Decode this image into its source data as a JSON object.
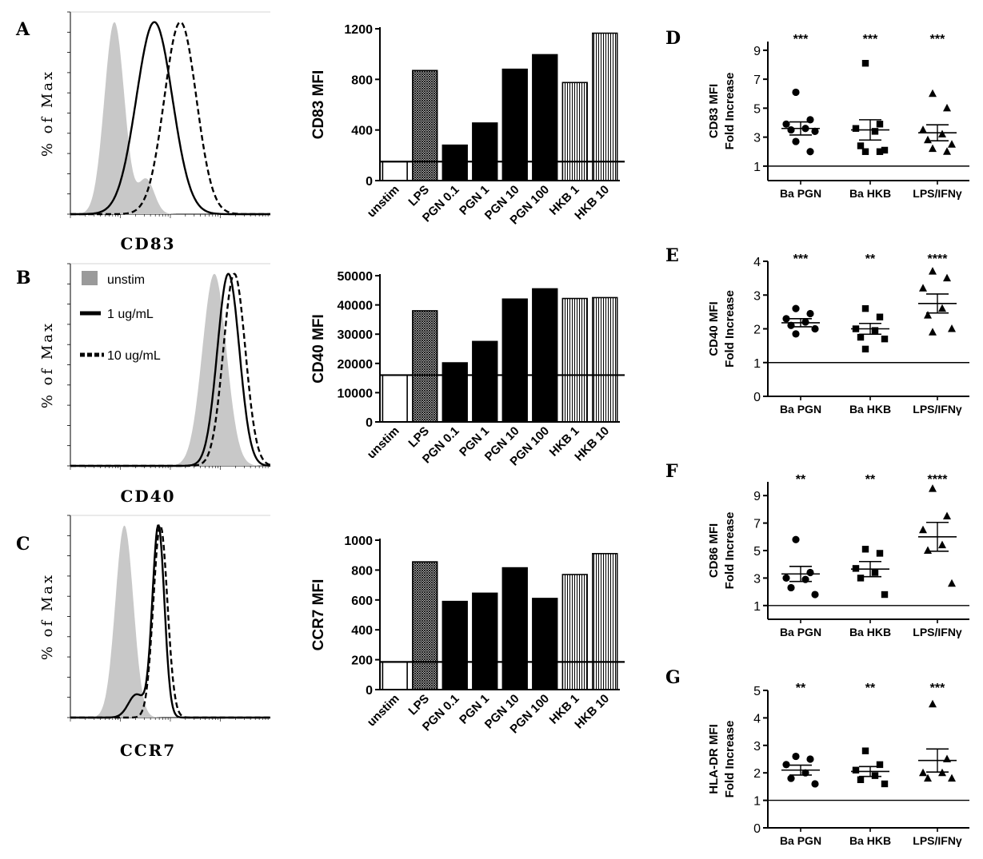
{
  "chart_data": [
    {
      "panel": "A",
      "type": "histogram",
      "xlabel": "CD83",
      "ylabel": "% of Max",
      "series": [
        {
          "name": "unstim",
          "style": "filled-gray",
          "mode": 0.22,
          "width": 0.05,
          "shoulder": [
            0.38,
            0.18
          ]
        },
        {
          "name": "1 ug/mL",
          "style": "solid",
          "mode": 0.42,
          "width": 0.09
        },
        {
          "name": "10 ug/mL",
          "style": "dashed",
          "mode": 0.55,
          "width": 0.08
        }
      ]
    },
    {
      "panel": "B",
      "type": "histogram",
      "xlabel": "CD40",
      "ylabel": "% of Max",
      "legend": [
        "unstim",
        "1 ug/mL",
        "10 ug/mL"
      ],
      "series": [
        {
          "name": "unstim",
          "style": "filled-gray",
          "mode": 0.72,
          "width": 0.06
        },
        {
          "name": "1 ug/mL",
          "style": "solid",
          "mode": 0.79,
          "width": 0.055
        },
        {
          "name": "10 ug/mL",
          "style": "dashed",
          "mode": 0.82,
          "width": 0.055
        }
      ]
    },
    {
      "panel": "C",
      "type": "histogram",
      "xlabel": "CCR7",
      "ylabel": "% of Max",
      "series": [
        {
          "name": "unstim",
          "style": "filled-gray",
          "mode": 0.27,
          "width": 0.045
        },
        {
          "name": "1 ug/mL",
          "style": "solid",
          "mode": 0.44,
          "width": 0.03,
          "shoulder": [
            0.33,
            0.12
          ]
        },
        {
          "name": "10 ug/mL",
          "style": "dashed",
          "mode": 0.45,
          "width": 0.035
        }
      ]
    },
    {
      "panel": "bar-CD83",
      "type": "bar",
      "ylabel": "CD83 MFI",
      "ylim": [
        0,
        1200
      ],
      "yticks": [
        0,
        400,
        800,
        1200
      ],
      "categories": [
        "unstim",
        "LPS",
        "PGN 0.1",
        "PGN 1",
        "PGN 10",
        "PGN 100",
        "HKB 1",
        "HKB 10"
      ],
      "values": [
        150,
        870,
        280,
        455,
        880,
        995,
        775,
        1165
      ],
      "fills": [
        "white",
        "cross",
        "black",
        "black",
        "black",
        "black",
        "vlines",
        "vlines"
      ],
      "reference_line": 150
    },
    {
      "panel": "bar-CD40",
      "type": "bar",
      "ylabel": "CD40 MFI",
      "ylim": [
        0,
        50000
      ],
      "yticks": [
        0,
        10000,
        20000,
        30000,
        40000,
        50000
      ],
      "categories": [
        "unstim",
        "LPS",
        "PGN 0.1",
        "PGN 1",
        "PGN 10",
        "PGN 100",
        "HKB 1",
        "HKB 10"
      ],
      "values": [
        16000,
        38000,
        20200,
        27500,
        42000,
        45500,
        42200,
        42500
      ],
      "fills": [
        "white",
        "cross",
        "black",
        "black",
        "black",
        "black",
        "vlines",
        "vlines"
      ],
      "reference_line": 16000
    },
    {
      "panel": "bar-CCR7",
      "type": "bar",
      "ylabel": "CCR7 MFI",
      "ylim": [
        0,
        1000
      ],
      "yticks": [
        0,
        200,
        400,
        600,
        800,
        1000
      ],
      "categories": [
        "unstim",
        "LPS",
        "PGN 0.1",
        "PGN 1",
        "PGN 10",
        "PGN 100",
        "HKB 1",
        "HKB 10"
      ],
      "values": [
        185,
        855,
        590,
        645,
        815,
        610,
        770,
        910
      ],
      "fills": [
        "white",
        "cross",
        "black",
        "black",
        "black",
        "black",
        "vlines",
        "vlines"
      ],
      "reference_line": 185
    },
    {
      "panel": "D",
      "type": "scatter",
      "ylabel": [
        "CD83 MFI",
        "Fold Increase"
      ],
      "ylim": [
        0,
        9.6
      ],
      "yticks": [
        1,
        3,
        5,
        7,
        9
      ],
      "baseline": 1,
      "categories": [
        "Ba PGN",
        "Ba HKB",
        "LPS/IFNγ"
      ],
      "significance": [
        "***",
        "***",
        "***"
      ],
      "groups": [
        {
          "marker": "circle",
          "points": [
            6.1,
            4.2,
            3.9,
            3.6,
            3.5,
            3.4,
            2.7,
            2.0
          ],
          "mean": 3.6,
          "sem": 0.45
        },
        {
          "marker": "square",
          "points": [
            8.1,
            3.9,
            3.6,
            3.4,
            2.4,
            2.1,
            2.0,
            2.0
          ],
          "mean": 3.5,
          "sem": 0.7
        },
        {
          "marker": "triangle",
          "points": [
            6.0,
            5.0,
            3.5,
            3.2,
            2.8,
            2.5,
            2.2,
            2.0
          ],
          "mean": 3.3,
          "sem": 0.55
        }
      ]
    },
    {
      "panel": "E",
      "type": "scatter",
      "ylabel": [
        "CD40 MFI",
        "Fold Increase"
      ],
      "ylim": [
        0,
        4
      ],
      "yticks": [
        0,
        1,
        2,
        3,
        4
      ],
      "baseline": 1,
      "categories": [
        "Ba PGN",
        "Ba HKB",
        "LPS/IFNγ"
      ],
      "significance": [
        "***",
        "**",
        "****"
      ],
      "groups": [
        {
          "marker": "circle",
          "points": [
            2.6,
            2.45,
            2.3,
            2.2,
            2.1,
            2.0,
            1.85
          ],
          "mean": 2.18,
          "sem": 0.12
        },
        {
          "marker": "square",
          "points": [
            2.6,
            2.35,
            2.0,
            1.95,
            1.75,
            1.7,
            1.4
          ],
          "mean": 2.0,
          "sem": 0.16
        },
        {
          "marker": "triangle",
          "points": [
            3.7,
            3.5,
            3.2,
            2.6,
            2.4,
            2.0,
            1.9
          ],
          "mean": 2.75,
          "sem": 0.28
        }
      ]
    },
    {
      "panel": "F",
      "type": "scatter",
      "ylabel": [
        "CD86 MFI",
        "Fold Increase"
      ],
      "ylim": [
        0,
        10
      ],
      "yticks": [
        1,
        3,
        5,
        7,
        9
      ],
      "baseline": 1,
      "categories": [
        "Ba PGN",
        "Ba HKB",
        "LPS/IFNγ"
      ],
      "significance": [
        "**",
        "**",
        "****"
      ],
      "groups": [
        {
          "marker": "circle",
          "points": [
            5.8,
            3.4,
            3.0,
            2.9,
            2.3,
            1.8
          ],
          "mean": 3.3,
          "sem": 0.55
        },
        {
          "marker": "square",
          "points": [
            5.1,
            4.8,
            3.7,
            3.4,
            3.0,
            1.8
          ],
          "mean": 3.65,
          "sem": 0.55
        },
        {
          "marker": "triangle",
          "points": [
            9.5,
            7.5,
            6.5,
            5.4,
            5.0,
            2.6
          ],
          "mean": 6.0,
          "sem": 1.05
        }
      ]
    },
    {
      "panel": "G",
      "type": "scatter",
      "ylabel": [
        "HLA-DR MFI",
        "Fold Increase"
      ],
      "ylim": [
        0,
        5
      ],
      "yticks": [
        0,
        1,
        2,
        3,
        4,
        5
      ],
      "baseline": 1,
      "categories": [
        "Ba PGN",
        "Ba HKB",
        "LPS/IFNγ"
      ],
      "significance": [
        "**",
        "**",
        "***"
      ],
      "groups": [
        {
          "marker": "circle",
          "points": [
            2.6,
            2.5,
            2.3,
            2.0,
            1.8,
            1.6
          ],
          "mean": 2.1,
          "sem": 0.18
        },
        {
          "marker": "square",
          "points": [
            2.8,
            2.3,
            2.1,
            1.9,
            1.75,
            1.6
          ],
          "mean": 2.05,
          "sem": 0.18
        },
        {
          "marker": "triangle",
          "points": [
            4.5,
            2.5,
            2.0,
            2.0,
            1.8,
            1.8
          ],
          "mean": 2.45,
          "sem": 0.42
        }
      ]
    }
  ],
  "panel_letters": {
    "A": "A",
    "B": "B",
    "C": "C",
    "D": "D",
    "E": "E",
    "F": "F",
    "G": "G"
  },
  "colors": {
    "filled": "#c8c8c8",
    "legend_swatch": "#9a9a9a",
    "ink": "#000000"
  }
}
